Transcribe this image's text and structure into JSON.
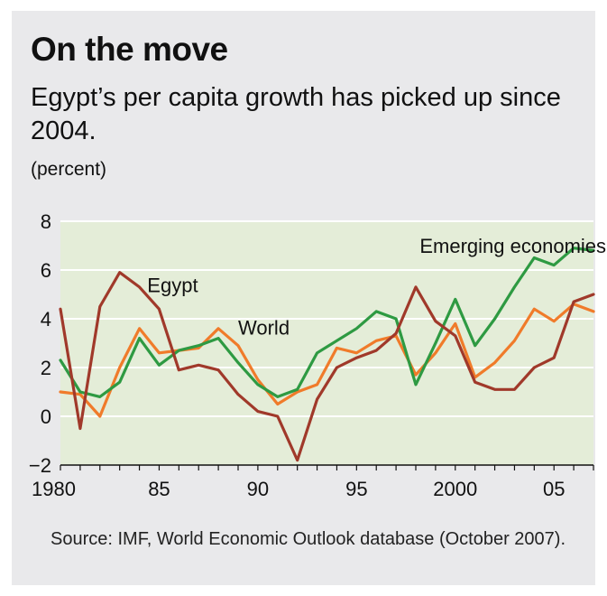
{
  "title": "On the move",
  "subtitle": "Egypt’s per capita growth has picked up since 2004.",
  "unit_label": "(percent)",
  "source": "Source: IMF, World Economic Outlook database (October 2007).",
  "colors": {
    "plot_background": "#e4edd8",
    "frame_background": "#e9e9eb",
    "gridline": "#ffffff",
    "emerging": "#2e9a42",
    "world": "#f07b2a",
    "egypt": "#a0392a"
  },
  "chart_data": {
    "type": "line",
    "x": [
      1980,
      1981,
      1982,
      1983,
      1984,
      1985,
      1986,
      1987,
      1988,
      1989,
      1990,
      1991,
      1992,
      1993,
      1994,
      1995,
      1996,
      1997,
      1998,
      1999,
      2000,
      2001,
      2002,
      2003,
      2004,
      2005,
      2006,
      2007
    ],
    "x_ticks": [
      1980,
      1985,
      1990,
      1995,
      2000,
      2005
    ],
    "x_tick_labels": [
      "1980",
      "85",
      "90",
      "95",
      "2000",
      "05"
    ],
    "y_ticks": [
      8,
      6,
      4,
      2,
      0,
      -2
    ],
    "y_tick_labels": [
      "8",
      "6",
      "4",
      "2",
      "0",
      "−2"
    ],
    "xlim": [
      1980,
      2007
    ],
    "ylim": [
      -2,
      8
    ],
    "grid": "horizontal",
    "series": [
      {
        "name": "Emerging economies",
        "color": "#2e9a42",
        "label_key": "emerging",
        "values": [
          2.3,
          1.0,
          0.8,
          1.4,
          3.2,
          2.1,
          2.7,
          2.9,
          3.2,
          2.2,
          1.3,
          0.8,
          1.1,
          2.6,
          3.1,
          3.6,
          4.3,
          4.0,
          1.3,
          3.0,
          4.8,
          2.9,
          4.0,
          5.3,
          6.5,
          6.2,
          6.9,
          6.8
        ]
      },
      {
        "name": "World",
        "color": "#f07b2a",
        "label_key": "world",
        "values": [
          1.0,
          0.9,
          0.0,
          2.0,
          3.6,
          2.6,
          2.7,
          2.8,
          3.6,
          2.9,
          1.5,
          0.5,
          1.0,
          1.3,
          2.8,
          2.6,
          3.1,
          3.3,
          1.7,
          2.6,
          3.8,
          1.6,
          2.2,
          3.1,
          4.4,
          3.9,
          4.6,
          4.3
        ]
      },
      {
        "name": "Egypt",
        "color": "#a0392a",
        "label_key": "egypt",
        "values": [
          4.4,
          -0.5,
          4.5,
          5.9,
          5.3,
          4.4,
          1.9,
          2.1,
          1.9,
          0.9,
          0.2,
          0.0,
          -1.8,
          0.7,
          2.0,
          2.4,
          2.7,
          3.4,
          5.3,
          3.9,
          3.3,
          1.4,
          1.1,
          1.1,
          2.0,
          2.4,
          4.7,
          5.0
        ]
      }
    ],
    "annotations": [
      {
        "text": "Emerging economies",
        "key": "emerging"
      },
      {
        "text": "Egypt",
        "key": "egypt"
      },
      {
        "text": "World",
        "key": "world"
      }
    ]
  }
}
